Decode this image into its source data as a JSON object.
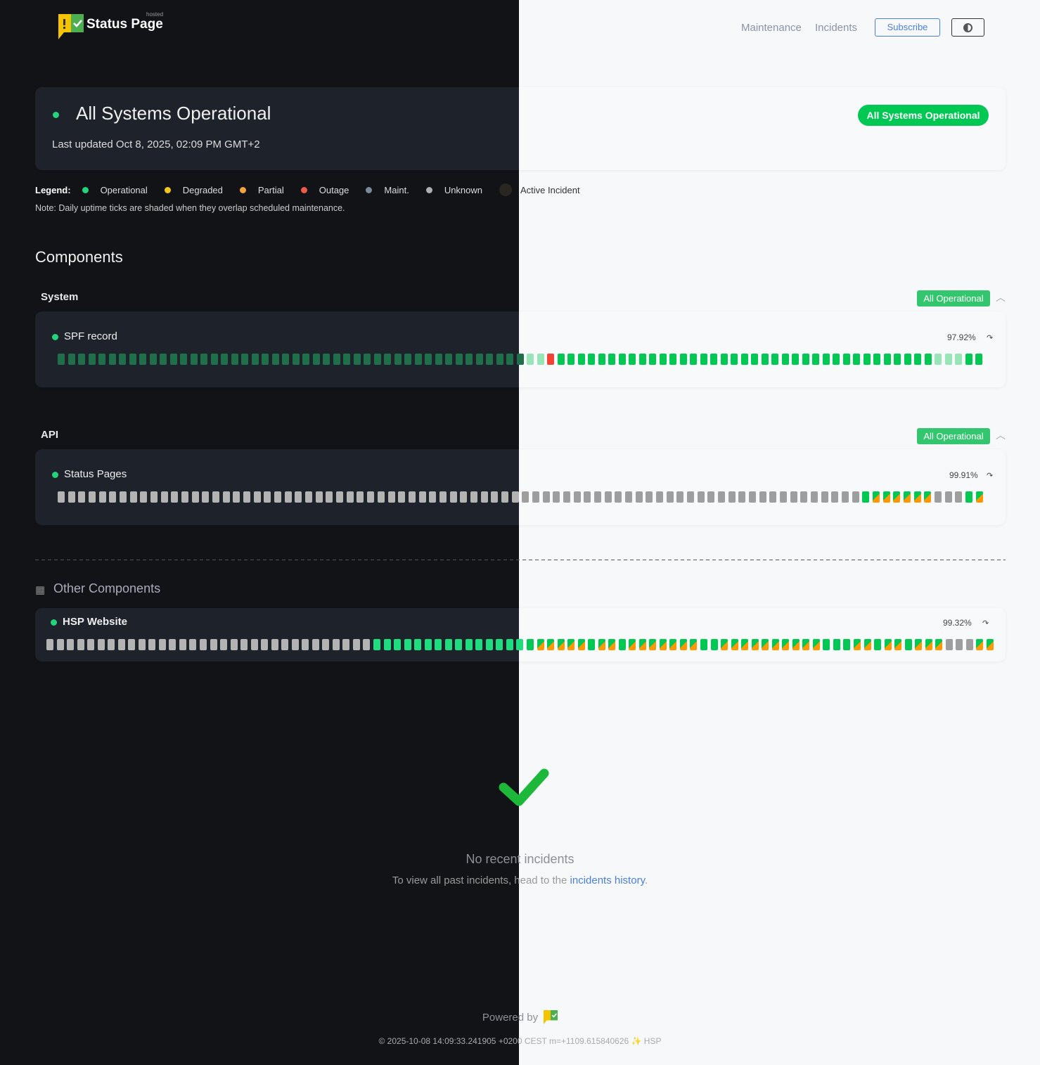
{
  "header": {
    "brand": "Status Page",
    "brand_sup": "hosted",
    "nav": [
      "Maintenance",
      "Incidents"
    ],
    "subscribe_label": "Subscribe",
    "theme_toggle_icon": "half-circle-icon"
  },
  "hero": {
    "title": "All Systems Operational",
    "last_updated": "Last updated Oct 8, 2025, 02:09 PM GMT+2",
    "badge": "All Systems Operational"
  },
  "legend": {
    "label": "Legend:",
    "items": [
      {
        "label": "Operational",
        "color": "#22d47a"
      },
      {
        "label": "Degraded",
        "color": "#f5c518"
      },
      {
        "label": "Partial",
        "color": "#f5a33a"
      },
      {
        "label": "Outage",
        "color": "#f05a4a"
      },
      {
        "label": "Maint.",
        "color": "#7a8a99"
      },
      {
        "label": "Unknown",
        "color": "#b0b0b0"
      },
      {
        "label": "Active Incident",
        "color": "#2a2620"
      }
    ],
    "note": "Note: Daily uptime ticks are shaded when they overlap scheduled maintenance."
  },
  "components_title": "Components",
  "tick_key": {
    "o": "operational",
    "m": "operational-maintenance-shaded",
    "x": "outage",
    "u": "unknown",
    "p": "operational-partial"
  },
  "groups": [
    {
      "name": "System",
      "badge": "All Operational",
      "components": [
        {
          "name": "SPF record",
          "uptime": "97.92%",
          "ticks": "mmmmmmmmmmmmmmmmmmmmmmmmmmmmmmmmmmmmmmmmmmmmmmmmxooooooooooooooooooooooooooooooooooooommmoo"
        }
      ]
    },
    {
      "name": "API",
      "badge": "All Operational",
      "components": [
        {
          "name": "Status Pages",
          "uptime": "99.91%",
          "ticks": "uuuuuuuuuuuuuuuuuuuuuuuuuuuuuuuuuuuuuuuuuuuuuuuuuuuuuuuuuuuuuuuuuuuuuuuuuuuuuuoppppppuuuop"
        }
      ]
    }
  ],
  "other": {
    "title": "Other Components",
    "components": [
      {
        "name": "HSP Website",
        "uptime": "99.32%",
        "ticks": "uuuuuuuuuuuuuuuuuuuuuuuuuuuuuuuuoooooooooooooooopppppoppopppppppooppppppppppoooppoppopppuuupp"
      }
    ]
  },
  "incidents": {
    "title": "No recent incidents",
    "sub_prefix": "To view all past incidents, head to the ",
    "sub_link": "incidents history",
    "sub_suffix": "."
  },
  "footer": {
    "powered_by": "Powered by",
    "stamp": "© 2025-10-08 14:09:33.241905 +0200 CEST m=+1109.615840626 ✨ HSP"
  }
}
